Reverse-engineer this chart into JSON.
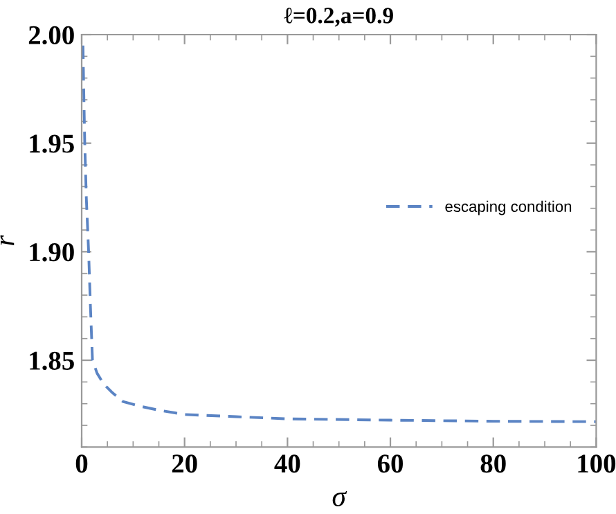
{
  "chart_data": {
    "type": "line",
    "title": "ℓ=0.2,a=0.9",
    "xlabel": "σ",
    "ylabel": "r",
    "series": [
      {
        "name": "escaping condition",
        "color": "#5b84c4",
        "x": [
          0.25,
          0.4,
          0.6,
          0.9,
          1.35,
          1.7,
          2.1,
          3,
          4.3,
          6,
          8,
          11,
          15,
          20,
          30,
          40,
          60,
          80,
          100
        ],
        "values": [
          1.995,
          1.975,
          1.95,
          1.925,
          1.9,
          1.875,
          1.85,
          1.844,
          1.839,
          1.835,
          1.831,
          1.829,
          1.827,
          1.825,
          1.824,
          1.823,
          1.8224,
          1.8219,
          1.8217
        ]
      }
    ],
    "line_style": "dashed",
    "marker": "none",
    "legend": "right",
    "grid": false,
    "xlim": [
      0,
      100
    ],
    "xticks": [
      0,
      20,
      40,
      60,
      80,
      100
    ],
    "ylim": [
      1.81,
      2.0
    ],
    "yticks": [
      {
        "value": 1.85,
        "label": "1.85"
      },
      {
        "value": 1.9,
        "label": "1.90"
      },
      {
        "value": 1.95,
        "label": "1.95"
      },
      {
        "value": 2.0,
        "label": "2.00"
      }
    ]
  }
}
